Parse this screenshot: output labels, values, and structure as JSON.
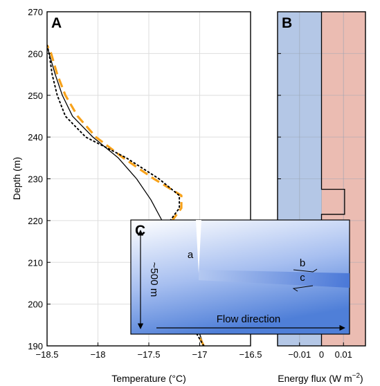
{
  "chart_data": [
    {
      "panel": "A",
      "type": "line",
      "xlabel": "Temperature (°C)",
      "ylabel": "Depth (m)",
      "xlim": [
        -18.5,
        -16.5
      ],
      "ylim": [
        270,
        190
      ],
      "xticks": [
        -18.5,
        -18,
        -17.5,
        -17,
        -16.5
      ],
      "xtick_labels": [
        "−18.5",
        "−18",
        "−17.5",
        "−17",
        "−16.5"
      ],
      "yticks": [
        190,
        200,
        210,
        220,
        230,
        240,
        250,
        260,
        270
      ],
      "ytick_labels": [
        "190",
        "200",
        "210",
        "220",
        "230",
        "240",
        "250",
        "260",
        "270"
      ],
      "grid": true,
      "series": [
        {
          "style": "solid",
          "color": "#000000",
          "points": [
            [
              -16.96,
              190
            ],
            [
              -17.03,
              195
            ],
            [
              -17.12,
              200
            ],
            [
              -17.22,
              205
            ],
            [
              -17.32,
              210
            ],
            [
              -17.34,
              215
            ],
            [
              -17.37,
              220
            ],
            [
              -17.48,
              225
            ],
            [
              -17.62,
              230
            ],
            [
              -17.8,
              235
            ],
            [
              -18.05,
              240
            ],
            [
              -18.25,
              245
            ],
            [
              -18.35,
              250
            ],
            [
              -18.42,
              255
            ],
            [
              -18.48,
              260
            ],
            [
              -18.5,
              262
            ]
          ]
        },
        {
          "style": "dashed",
          "color": "#f7a21b",
          "points": [
            [
              -16.96,
              190
            ],
            [
              -17.06,
              195
            ],
            [
              -17.15,
              200
            ],
            [
              -17.28,
              205
            ],
            [
              -17.38,
              210
            ],
            [
              -17.4,
              215
            ],
            [
              -17.3,
              219
            ],
            [
              -17.18,
              223
            ],
            [
              -17.18,
              226
            ],
            [
              -17.45,
              230
            ],
            [
              -17.75,
              235
            ],
            [
              -18.02,
              240
            ],
            [
              -18.2,
              245
            ],
            [
              -18.32,
              250
            ],
            [
              -18.4,
              255
            ],
            [
              -18.46,
              260
            ],
            [
              -18.5,
              262
            ]
          ]
        },
        {
          "style": "dotted",
          "color": "#000000",
          "points": [
            [
              -16.96,
              190
            ],
            [
              -17.08,
              195
            ],
            [
              -17.2,
              200
            ],
            [
              -17.32,
              205
            ],
            [
              -17.42,
              210
            ],
            [
              -17.42,
              215
            ],
            [
              -17.32,
              219
            ],
            [
              -17.2,
              223
            ],
            [
              -17.2,
              226
            ],
            [
              -17.4,
              230
            ],
            [
              -17.72,
              235
            ],
            [
              -18.12,
              240
            ],
            [
              -18.32,
              245
            ],
            [
              -18.4,
              250
            ],
            [
              -18.45,
              255
            ],
            [
              -18.48,
              260
            ],
            [
              -18.5,
              262
            ]
          ]
        }
      ]
    },
    {
      "panel": "B",
      "type": "line",
      "xlabel": "Energy flux (W m",
      "xlabel_sup": "−2",
      "xlabel_end": ")",
      "xlim": [
        -0.02,
        0.02
      ],
      "ylim": [
        270,
        190
      ],
      "xticks": [
        -0.01,
        0,
        0.01
      ],
      "xtick_labels": [
        "−0.01",
        "0",
        "0.01"
      ],
      "grid": true,
      "background": {
        "negative_color": "#b4c7e6",
        "positive_color": "#ebbcb2"
      },
      "series": [
        {
          "style": "solid",
          "color": "#000000",
          "points": [
            [
              0,
              190
            ],
            [
              0,
              208
            ],
            [
              -0.0045,
              208
            ],
            [
              -0.0045,
              214
            ],
            [
              0,
              214
            ],
            [
              0,
              221.5
            ],
            [
              0.0105,
              221.5
            ],
            [
              0.0105,
              227.5
            ],
            [
              0,
              227.5
            ],
            [
              0,
              270
            ]
          ]
        }
      ]
    }
  ],
  "inset": {
    "panel": "C",
    "depth_label": "~500 m",
    "flow_label": "Flow direction",
    "labels": {
      "a": "a",
      "b": "b",
      "c": "c"
    }
  }
}
